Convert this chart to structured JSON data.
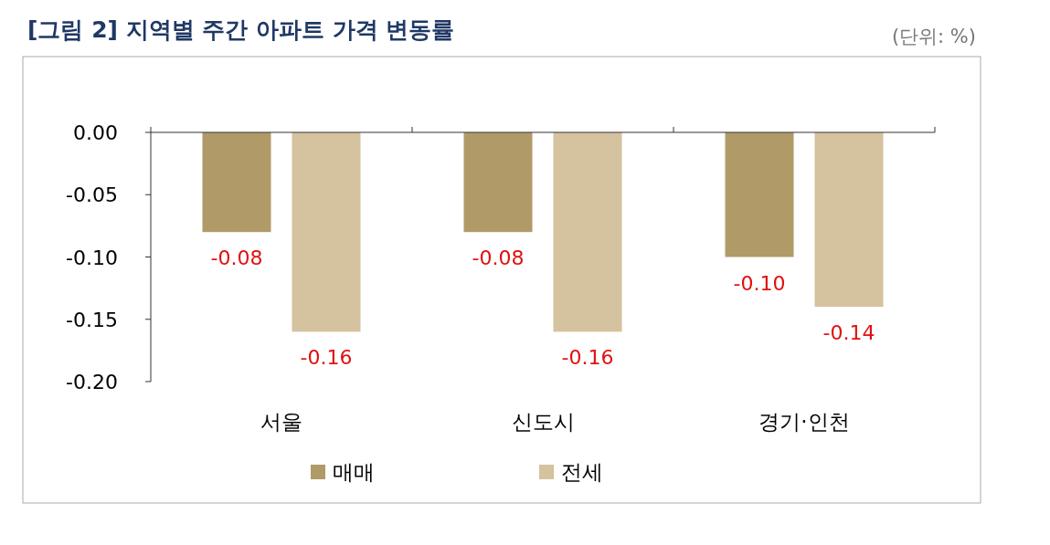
{
  "chart_data": {
    "type": "bar",
    "title": "[그림 2] 지역별 주간 아파트 가격 변동률",
    "annotations": [
      "(단위: %)"
    ],
    "categories": [
      "서울",
      "신도시",
      "경기·인천"
    ],
    "series": [
      {
        "name": "매매",
        "color": "#b09a68",
        "values": [
          -0.08,
          -0.08,
          -0.1
        ],
        "value_labels": [
          "-0.08",
          "-0.08",
          "-0.10"
        ]
      },
      {
        "name": "전세",
        "color": "#d5c29e",
        "values": [
          -0.16,
          -0.16,
          -0.14
        ],
        "value_labels": [
          "-0.16",
          "-0.16",
          "-0.14"
        ]
      }
    ],
    "ylim": [
      -0.2,
      0
    ],
    "yticks": [
      {
        "value": 0,
        "label": "0.00"
      },
      {
        "value": -0.05,
        "label": "-0.05"
      },
      {
        "value": -0.1,
        "label": "-0.10"
      },
      {
        "value": -0.15,
        "label": "-0.15"
      },
      {
        "value": -0.2,
        "label": "-0.20"
      }
    ],
    "grid": false,
    "legend": "bottom"
  }
}
